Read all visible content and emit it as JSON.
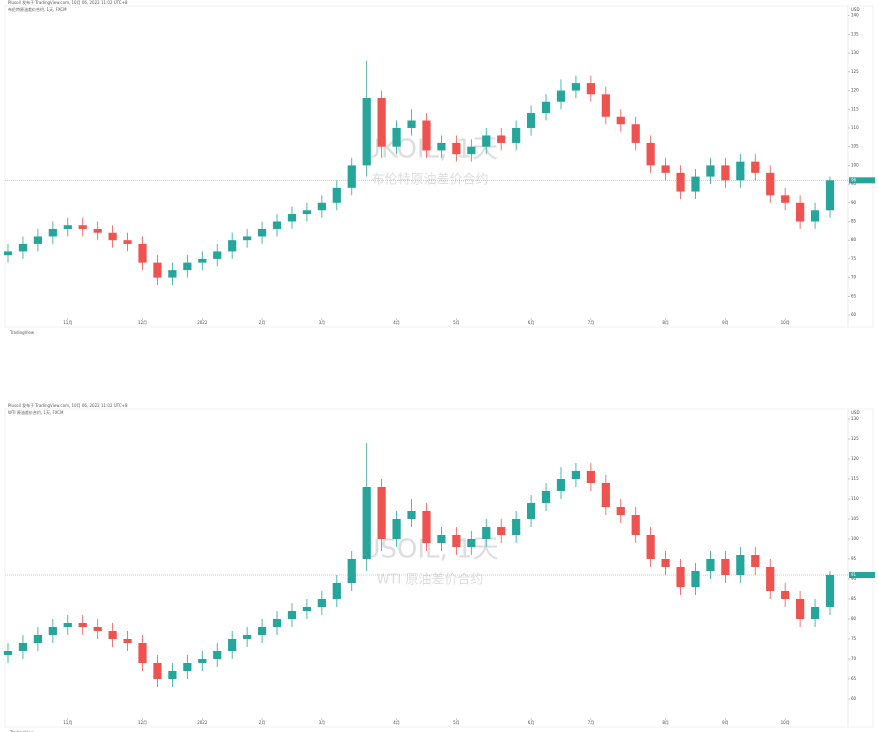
{
  "chart_data": [
    {
      "type": "candlestick",
      "title": "UKOIL, 1天",
      "subtitle": "布伦特原油差价合约",
      "header": "Plusoil 发布于 TradingView.com, 10月 06, 2022 11:02 UTC+8",
      "legend": "布伦特原油差价合约, 1天, FXCM",
      "footer": "TradingView",
      "currency": "USD",
      "up_color": "#26a69a",
      "down_color": "#ef5350",
      "series": {
        "open": [
          76,
          77,
          79,
          81,
          83,
          84,
          83,
          82,
          80,
          79,
          74,
          70,
          72,
          74,
          75,
          77,
          80,
          81,
          83,
          85,
          87,
          88,
          90,
          94,
          100,
          118,
          105,
          110,
          112,
          104,
          106,
          103,
          105,
          108,
          106,
          110,
          114,
          117,
          120,
          122,
          119,
          113,
          111,
          106,
          100,
          98,
          93,
          97,
          100,
          96,
          101,
          98,
          92,
          90,
          85,
          88
        ],
        "high": [
          79,
          81,
          83,
          85,
          86,
          86,
          85,
          84,
          82,
          81,
          76,
          74,
          76,
          77,
          79,
          82,
          83,
          85,
          87,
          89,
          90,
          92,
          96,
          102,
          128,
          120,
          112,
          115,
          114,
          108,
          108,
          107,
          110,
          110,
          112,
          116,
          119,
          123,
          124,
          124,
          121,
          115,
          113,
          108,
          102,
          100,
          99,
          102,
          102,
          103,
          103,
          100,
          94,
          92,
          90,
          97
        ],
        "low": [
          74,
          75,
          77,
          79,
          81,
          81,
          80,
          78,
          77,
          72,
          68,
          68,
          70,
          72,
          73,
          75,
          78,
          79,
          81,
          83,
          85,
          86,
          88,
          92,
          97,
          102,
          103,
          108,
          102,
          102,
          101,
          101,
          103,
          104,
          104,
          108,
          112,
          115,
          118,
          117,
          111,
          109,
          104,
          98,
          96,
          91,
          91,
          95,
          94,
          94,
          96,
          90,
          88,
          83,
          83,
          86
        ],
        "close": [
          77,
          79,
          81,
          83,
          84,
          83,
          82,
          80,
          79,
          74,
          70,
          72,
          74,
          75,
          77,
          80,
          81,
          83,
          85,
          87,
          88,
          90,
          94,
          100,
          118,
          105,
          110,
          112,
          104,
          106,
          103,
          105,
          108,
          106,
          110,
          114,
          117,
          120,
          122,
          119,
          113,
          111,
          106,
          100,
          98,
          93,
          97,
          100,
          96,
          101,
          98,
          92,
          90,
          85,
          88,
          96
        ]
      },
      "ylim": [
        60,
        141
      ],
      "yticks": [
        60,
        65,
        70,
        75,
        80,
        85,
        90,
        95,
        100,
        105,
        110,
        115,
        120,
        125,
        130,
        135,
        140
      ],
      "xticks": [
        {
          "value": 4,
          "label": "11月"
        },
        {
          "value": 9,
          "label": "12月"
        },
        {
          "value": 13,
          "label": "2022"
        },
        {
          "value": 17,
          "label": "2月"
        },
        {
          "value": 21,
          "label": "3月"
        },
        {
          "value": 26,
          "label": "4月"
        },
        {
          "value": 30,
          "label": "5月"
        },
        {
          "value": 35,
          "label": "6月"
        },
        {
          "value": 39,
          "label": "7月"
        },
        {
          "value": 44,
          "label": "8月"
        },
        {
          "value": 48,
          "label": "9月"
        },
        {
          "value": 52,
          "label": "10月"
        }
      ]
    },
    {
      "type": "candlestick",
      "title": "USOIL, 1天",
      "subtitle": "WTI 原油差价合约",
      "header": "Plusoil 发布于 TradingView.com, 10月 06, 2022 11:02 UTC+8",
      "legend": "WTI 原油差价合约, 1天, FXCM",
      "footer": "TradingView",
      "currency": "USD",
      "up_color": "#26a69a",
      "down_color": "#ef5350",
      "series": {
        "open": [
          71,
          72,
          74,
          76,
          78,
          79,
          78,
          77,
          75,
          74,
          69,
          65,
          67,
          69,
          70,
          72,
          75,
          76,
          78,
          80,
          82,
          83,
          85,
          89,
          95,
          113,
          100,
          105,
          107,
          99,
          101,
          98,
          100,
          103,
          101,
          105,
          109,
          112,
          115,
          117,
          114,
          108,
          106,
          101,
          95,
          93,
          88,
          92,
          95,
          91,
          96,
          93,
          87,
          85,
          80,
          83
        ],
        "high": [
          74,
          76,
          78,
          80,
          81,
          81,
          80,
          79,
          77,
          76,
          71,
          69,
          71,
          72,
          74,
          77,
          78,
          80,
          82,
          84,
          85,
          87,
          91,
          97,
          124,
          115,
          107,
          110,
          109,
          103,
          103,
          102,
          105,
          105,
          107,
          111,
          114,
          118,
          119,
          119,
          116,
          110,
          108,
          103,
          97,
          95,
          94,
          97,
          97,
          98,
          98,
          95,
          89,
          87,
          85,
          92
        ],
        "low": [
          69,
          70,
          72,
          74,
          76,
          76,
          75,
          73,
          72,
          67,
          63,
          63,
          65,
          67,
          68,
          70,
          73,
          74,
          76,
          78,
          80,
          81,
          83,
          87,
          92,
          97,
          98,
          103,
          97,
          97,
          96,
          96,
          98,
          99,
          99,
          103,
          107,
          110,
          113,
          112,
          106,
          104,
          99,
          93,
          91,
          86,
          86,
          90,
          89,
          89,
          91,
          85,
          83,
          78,
          78,
          81
        ],
        "close": [
          72,
          74,
          76,
          78,
          79,
          78,
          77,
          75,
          74,
          69,
          65,
          67,
          69,
          70,
          72,
          75,
          76,
          78,
          80,
          82,
          83,
          85,
          89,
          95,
          113,
          100,
          105,
          107,
          99,
          101,
          98,
          100,
          103,
          101,
          105,
          109,
          112,
          115,
          117,
          114,
          108,
          106,
          101,
          95,
          93,
          88,
          92,
          95,
          91,
          96,
          93,
          87,
          85,
          80,
          83,
          91
        ]
      },
      "ylim": [
        56,
        131
      ],
      "yticks": [
        60,
        65,
        70,
        75,
        80,
        85,
        90,
        95,
        100,
        105,
        110,
        115,
        120,
        125,
        130
      ],
      "xticks": [
        {
          "value": 4,
          "label": "11月"
        },
        {
          "value": 9,
          "label": "12月"
        },
        {
          "value": 13,
          "label": "2022"
        },
        {
          "value": 17,
          "label": "2月"
        },
        {
          "value": 21,
          "label": "3月"
        },
        {
          "value": 26,
          "label": "4月"
        },
        {
          "value": 30,
          "label": "5月"
        },
        {
          "value": 35,
          "label": "6月"
        },
        {
          "value": 39,
          "label": "7月"
        },
        {
          "value": 44,
          "label": "8月"
        },
        {
          "value": 48,
          "label": "9月"
        },
        {
          "value": 52,
          "label": "10月"
        }
      ]
    }
  ]
}
